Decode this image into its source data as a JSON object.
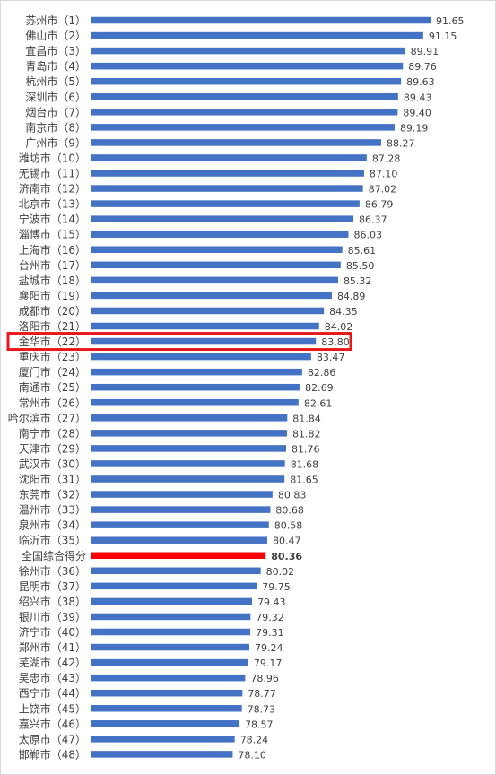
{
  "chart_data": {
    "type": "bar",
    "orientation": "horizontal",
    "categories": [
      "苏州市（1）",
      "佛山市（2）",
      "宜昌市（3）",
      "青岛市（4）",
      "杭州市（5）",
      "深圳市（6）",
      "烟台市（7）",
      "南京市（8）",
      "广州市（9）",
      "潍坊市（10）",
      "无锡市（11）",
      "济南市（12）",
      "北京市（13）",
      "宁波市（14）",
      "淄博市（15）",
      "上海市（16）",
      "台州市（17）",
      "盐城市（18）",
      "襄阳市（19）",
      "成都市（20）",
      "洛阳市（21）",
      "金华市（22）",
      "重庆市（23）",
      "厦门市（24）",
      "南通市（25）",
      "常州市（26）",
      "哈尔滨市（27）",
      "南宁市（28）",
      "天津市（29）",
      "武汉市（30）",
      "沈阳市（31）",
      "东莞市（32）",
      "温州市（33）",
      "泉州市（34）",
      "临沂市（35）",
      "全国综合得分",
      "徐州市（36）",
      "昆明市（37）",
      "绍兴市（38）",
      "银川市（39）",
      "济宁市（40）",
      "郑州市（41）",
      "芜湖市（42）",
      "吴忠市（43）",
      "西宁市（44）",
      "上饶市（45）",
      "嘉兴市（46）",
      "太原市（47）",
      "邯郸市（48）"
    ],
    "values": [
      91.65,
      91.15,
      89.91,
      89.76,
      89.63,
      89.43,
      89.4,
      89.19,
      88.27,
      87.28,
      87.1,
      87.02,
      86.79,
      86.37,
      86.03,
      85.61,
      85.5,
      85.32,
      84.89,
      84.35,
      84.02,
      83.8,
      83.47,
      82.86,
      82.69,
      82.61,
      81.84,
      81.82,
      81.76,
      81.68,
      81.65,
      80.83,
      80.68,
      80.58,
      80.47,
      80.36,
      80.02,
      79.75,
      79.43,
      79.32,
      79.31,
      79.24,
      79.17,
      78.96,
      78.77,
      78.73,
      78.57,
      78.24,
      78.1
    ],
    "value_labels": [
      "91.65",
      "91.15",
      "89.91",
      "89.76",
      "89.63",
      "89.43",
      "89.40",
      "89.19",
      "88.27",
      "87.28",
      "87.10",
      "87.02",
      "86.79",
      "86.37",
      "86.03",
      "85.61",
      "85.50",
      "85.32",
      "84.89",
      "84.35",
      "84.02",
      "83.80",
      "83.47",
      "82.86",
      "82.69",
      "82.61",
      "81.84",
      "81.82",
      "81.76",
      "81.68",
      "81.65",
      "80.83",
      "80.68",
      "80.58",
      "80.47",
      "80.36",
      "80.02",
      "79.75",
      "79.43",
      "79.32",
      "79.31",
      "79.24",
      "79.17",
      "78.96",
      "78.77",
      "78.73",
      "78.57",
      "78.24",
      "78.10"
    ],
    "highlighted_category": "金华市（22）",
    "national_average_category": "全国综合得分",
    "colors": {
      "bar": "#4472c4",
      "national_bar": "#ff0000",
      "highlight_box": "#e8191c",
      "text": "#404040"
    },
    "xlim": [
      68.4,
      91.65
    ],
    "grid": false,
    "legend": "none"
  }
}
